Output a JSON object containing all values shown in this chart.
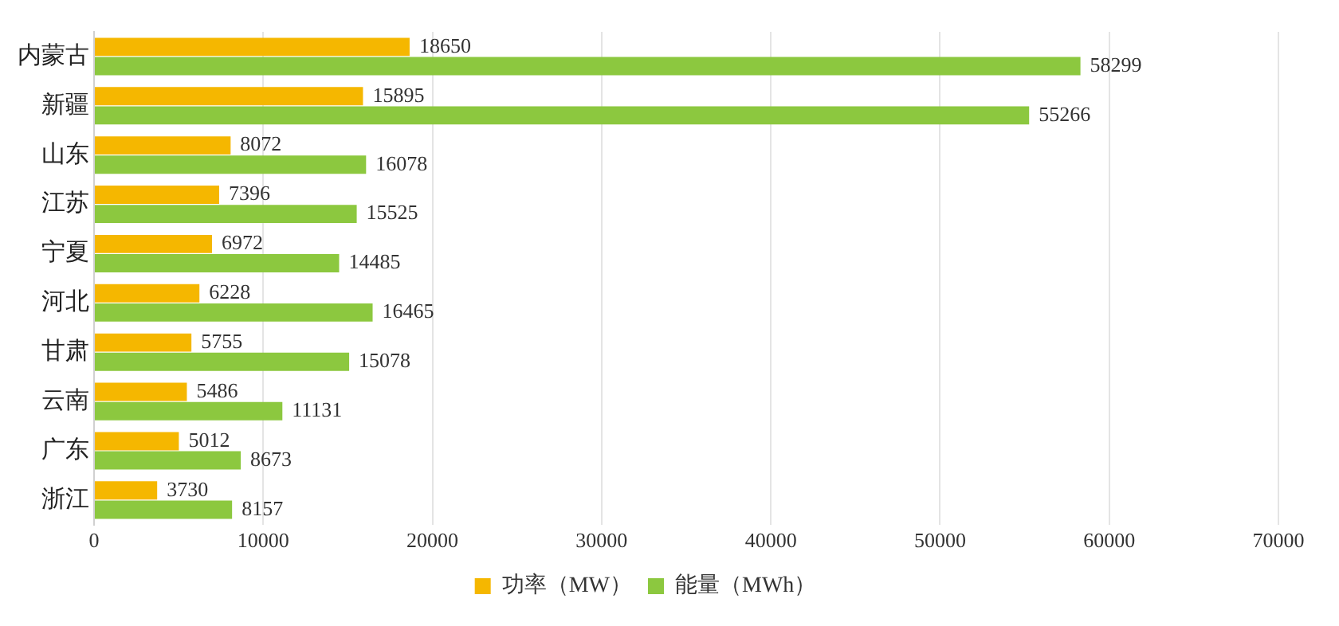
{
  "chart_data": {
    "type": "bar",
    "orientation": "horizontal",
    "categories": [
      "内蒙古",
      "新疆",
      "山东",
      "江苏",
      "宁夏",
      "河北",
      "甘肃",
      "云南",
      "广东",
      "浙江"
    ],
    "series": [
      {
        "name": "功率（MW）",
        "color": "#f5b700",
        "values": [
          18650,
          15895,
          8072,
          7396,
          6972,
          6228,
          5755,
          5486,
          5012,
          3730
        ]
      },
      {
        "name": "能量（MWh）",
        "color": "#8cc83f",
        "values": [
          58299,
          55266,
          16078,
          15525,
          14485,
          16465,
          15078,
          11131,
          8673,
          8157
        ]
      }
    ],
    "xlim": [
      0,
      70000
    ],
    "xticks": [
      0,
      10000,
      20000,
      30000,
      40000,
      50000,
      60000,
      70000
    ],
    "grid": "x",
    "legend": "bottom",
    "data_labels": true
  }
}
